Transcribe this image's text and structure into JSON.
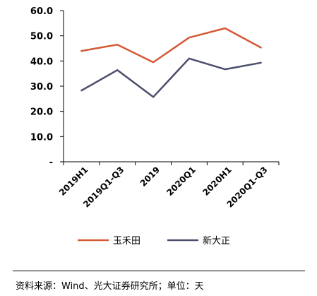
{
  "chart_data": {
    "type": "line",
    "categories": [
      "2019H1",
      "2019Q1-Q3",
      "2019",
      "2020Q1",
      "2020H1",
      "2020Q1-Q3"
    ],
    "series": [
      {
        "name": "玉禾田",
        "color": "#D45A35",
        "values": [
          44.0,
          46.5,
          39.5,
          49.3,
          53.0,
          45.3
        ]
      },
      {
        "name": "新大正",
        "color": "#4B4E6D",
        "values": [
          28.3,
          36.4,
          25.7,
          41.0,
          36.7,
          39.3
        ]
      }
    ],
    "y_tick_labels": [
      "-",
      "10.0",
      "20.0",
      "30.0",
      "40.0",
      "50.0",
      "60.0"
    ],
    "ylim": [
      0,
      60
    ],
    "grid": false,
    "legend_position": "bottom"
  },
  "footer": {
    "source": "资料来源：Wind、光大证券研究所；单位：天"
  }
}
